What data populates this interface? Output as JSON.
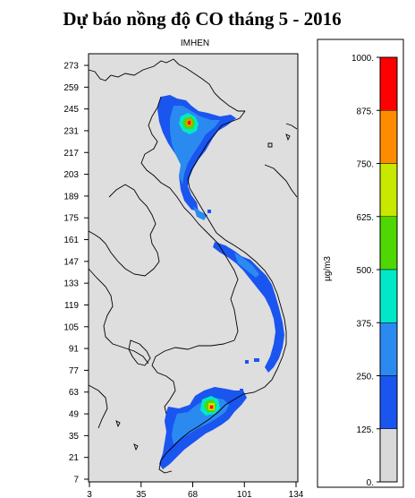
{
  "title": "Dự báo nồng độ CO tháng 5 - 2016",
  "subtitle": "IMHEN",
  "y_axis": {
    "ticks": [
      "273",
      "259",
      "245",
      "231",
      "217",
      "203",
      "189",
      "175",
      "161",
      "147",
      "133",
      "119",
      "105",
      "91",
      "77",
      "63",
      "49",
      "35",
      "21",
      "7"
    ]
  },
  "x_axis": {
    "ticks": [
      "3",
      "35",
      "68",
      "101",
      "134"
    ]
  },
  "legend": {
    "unit_label": "µg/m3",
    "levels": [
      {
        "label": "1000.",
        "color": "#ff0000"
      },
      {
        "label": "875.",
        "color": "#ff8c00"
      },
      {
        "label": "750.",
        "color": "#c8e800"
      },
      {
        "label": "625.",
        "color": "#4ed700"
      },
      {
        "label": "500.",
        "color": "#00e8c8"
      },
      {
        "label": "375.",
        "color": "#2b8af0"
      },
      {
        "label": "250.",
        "color": "#1a55f0"
      },
      {
        "label": "125.",
        "color": "#d9d9d9"
      },
      {
        "label": "0.",
        "color": null
      }
    ]
  },
  "colors": {
    "map_background": "#dedede",
    "band_125_250": "#1a55f0",
    "band_250_375": "#2b8af0",
    "band_375_500": "#00e8c8",
    "band_500_625": "#4ed700",
    "band_625_750": "#c8e800",
    "band_750_875": "#ff8c00",
    "band_875_1000": "#ff0000",
    "below_125": "#d9d9d9"
  }
}
